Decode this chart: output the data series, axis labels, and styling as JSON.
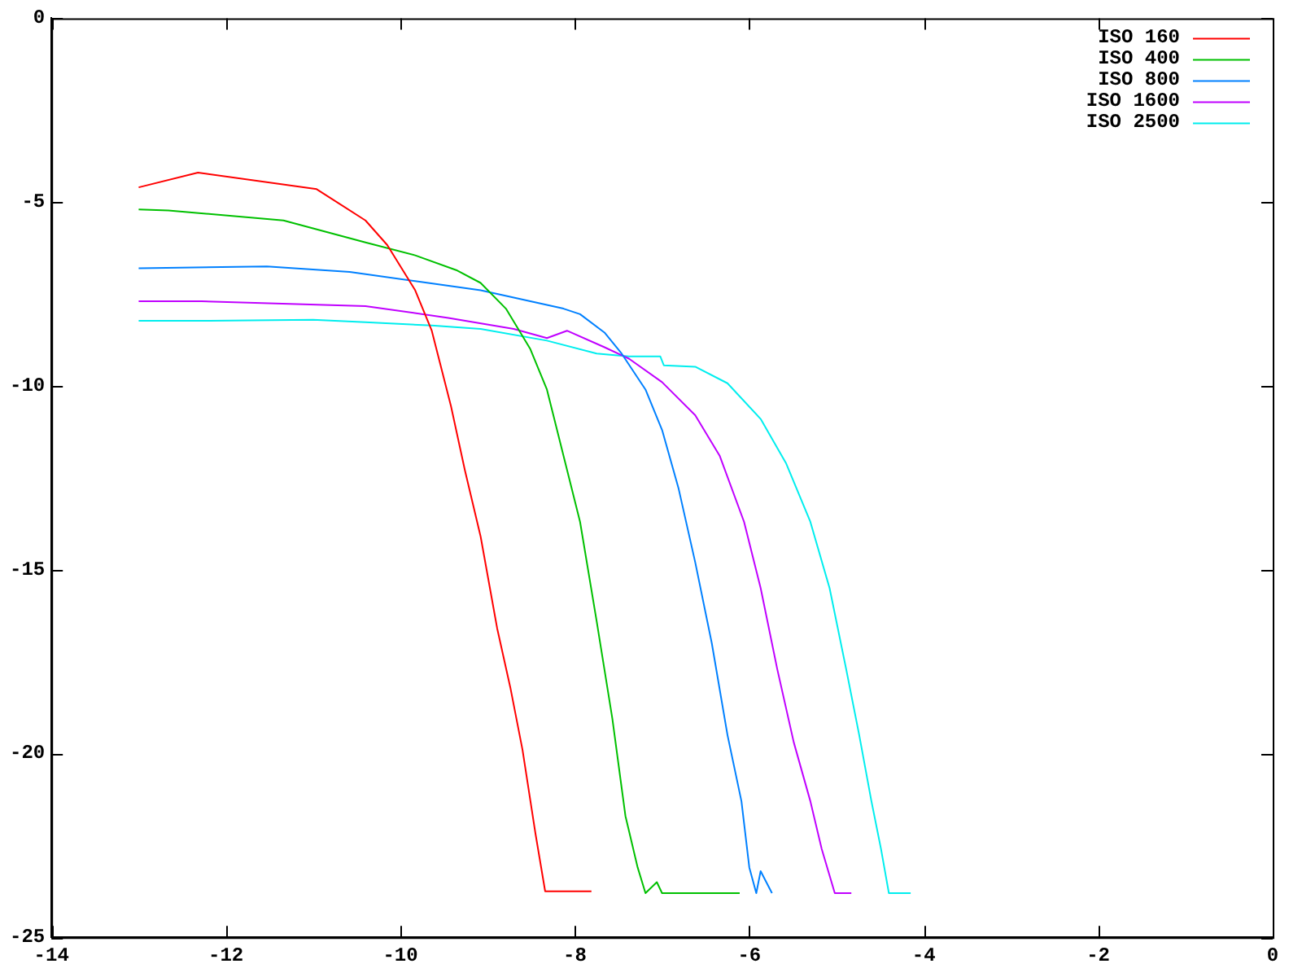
{
  "chart_data": {
    "type": "line",
    "xlim": [
      -14,
      0
    ],
    "xticks": [
      -14,
      -12,
      -10,
      -8,
      -6,
      -4,
      -2,
      0
    ],
    "ylim": [
      -25,
      0
    ],
    "yticks": [
      -25,
      -20,
      -15,
      -10,
      -5,
      0
    ],
    "grid": false,
    "legend": "top right",
    "marker": "none",
    "line_style": "solid",
    "series": [
      {
        "name": "ISO 160",
        "color": "#ff0000",
        "x": [
          -13,
          -12.32,
          -10.96,
          -10.4,
          -10.15,
          -9.83,
          -9.64,
          -9.42,
          -9.26,
          -9.08,
          -8.89,
          -8.74,
          -8.6,
          -8.45,
          -8.34,
          -7.81
        ],
        "values": [
          -4.6,
          -4.2,
          -4.65,
          -5.5,
          -6.17,
          -7.4,
          -8.5,
          -10.55,
          -12.3,
          -14.1,
          -16.6,
          -18.2,
          -19.9,
          -22.2,
          -23.75,
          -23.75
        ]
      },
      {
        "name": "ISO 400",
        "color": "#00c000",
        "x": [
          -13,
          -12.66,
          -11.34,
          -10.4,
          -9.83,
          -9.36,
          -9.08,
          -8.79,
          -8.51,
          -8.32,
          -8.13,
          -7.94,
          -7.75,
          -7.57,
          -7.42,
          -7.28,
          -7.19,
          -7.06,
          -7.0,
          -6.11
        ],
        "values": [
          -5.2,
          -5.23,
          -5.5,
          -6.1,
          -6.45,
          -6.85,
          -7.2,
          -7.9,
          -9.0,
          -10.1,
          -11.9,
          -13.7,
          -16.4,
          -19.05,
          -21.7,
          -23.1,
          -23.8,
          -23.5,
          -23.8,
          -23.8
        ]
      },
      {
        "name": "ISO 800",
        "color": "#0080ff",
        "x": [
          -13,
          -11.53,
          -10.58,
          -9.83,
          -9.08,
          -8.51,
          -8.13,
          -7.94,
          -7.66,
          -7.47,
          -7.19,
          -7.0,
          -6.81,
          -6.62,
          -6.43,
          -6.25,
          -6.09,
          -6.0,
          -5.92,
          -5.87,
          -5.74
        ],
        "values": [
          -6.8,
          -6.75,
          -6.9,
          -7.15,
          -7.4,
          -7.7,
          -7.9,
          -8.05,
          -8.55,
          -9.1,
          -10.1,
          -11.2,
          -12.8,
          -14.8,
          -17.0,
          -19.5,
          -21.3,
          -23.1,
          -23.8,
          -23.2,
          -23.8
        ]
      },
      {
        "name": "ISO 1600",
        "color": "#c000ff",
        "x": [
          -13,
          -12.28,
          -10.4,
          -9.45,
          -8.7,
          -8.32,
          -8.09,
          -7.66,
          -7.38,
          -7.0,
          -6.62,
          -6.34,
          -6.06,
          -5.87,
          -5.68,
          -5.49,
          -5.3,
          -5.17,
          -5.02,
          -4.83
        ],
        "values": [
          -7.7,
          -7.7,
          -7.83,
          -8.15,
          -8.45,
          -8.7,
          -8.5,
          -8.95,
          -9.26,
          -9.9,
          -10.8,
          -11.9,
          -13.7,
          -15.5,
          -17.7,
          -19.7,
          -21.3,
          -22.6,
          -23.8,
          -23.8
        ]
      },
      {
        "name": "ISO 2500",
        "color": "#00eeee",
        "x": [
          -13,
          -12.19,
          -11.0,
          -10.4,
          -9.64,
          -9.08,
          -8.32,
          -7.75,
          -7.38,
          -7.02,
          -6.98,
          -6.62,
          -6.25,
          -5.87,
          -5.58,
          -5.3,
          -5.08,
          -4.89,
          -4.74,
          -4.6,
          -4.49,
          -4.4,
          -4.15
        ],
        "values": [
          -8.23,
          -8.23,
          -8.2,
          -8.27,
          -8.36,
          -8.45,
          -8.77,
          -9.12,
          -9.2,
          -9.2,
          -9.44,
          -9.48,
          -9.93,
          -10.9,
          -12.1,
          -13.7,
          -15.5,
          -17.7,
          -19.5,
          -21.3,
          -22.6,
          -23.8,
          -23.8
        ]
      }
    ]
  }
}
